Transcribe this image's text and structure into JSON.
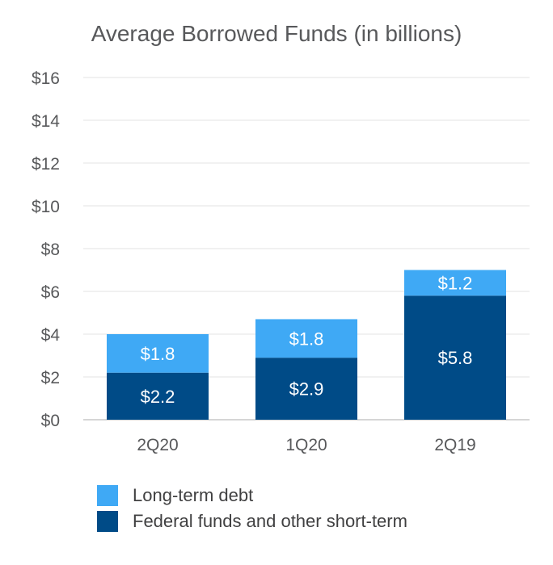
{
  "chart_data": {
    "type": "bar",
    "stacked": true,
    "title": "Average Borrowed Funds (in billions)",
    "categories": [
      "2Q20",
      "1Q20",
      "2Q19"
    ],
    "series": [
      {
        "name": "Federal funds and other short-term",
        "values": [
          2.2,
          2.9,
          5.8
        ],
        "labels": [
          "$2.2",
          "$2.9",
          "$5.8"
        ],
        "color": "#004b87"
      },
      {
        "name": "Long-term debt",
        "values": [
          1.8,
          1.8,
          1.2
        ],
        "labels": [
          "$1.8",
          "$1.8",
          "$1.2"
        ],
        "color": "#3fa9f5"
      }
    ],
    "y_ticks": [
      0,
      2,
      4,
      6,
      8,
      10,
      12,
      14,
      16
    ],
    "y_tick_labels": [
      "$0",
      "$2",
      "$4",
      "$6",
      "$8",
      "$10",
      "$12",
      "$14",
      "$16"
    ],
    "ylim": [
      0,
      16
    ],
    "grid": true,
    "legend_position": "bottom-left",
    "legend_order": [
      "Long-term debt",
      "Federal funds and other short-term"
    ]
  }
}
